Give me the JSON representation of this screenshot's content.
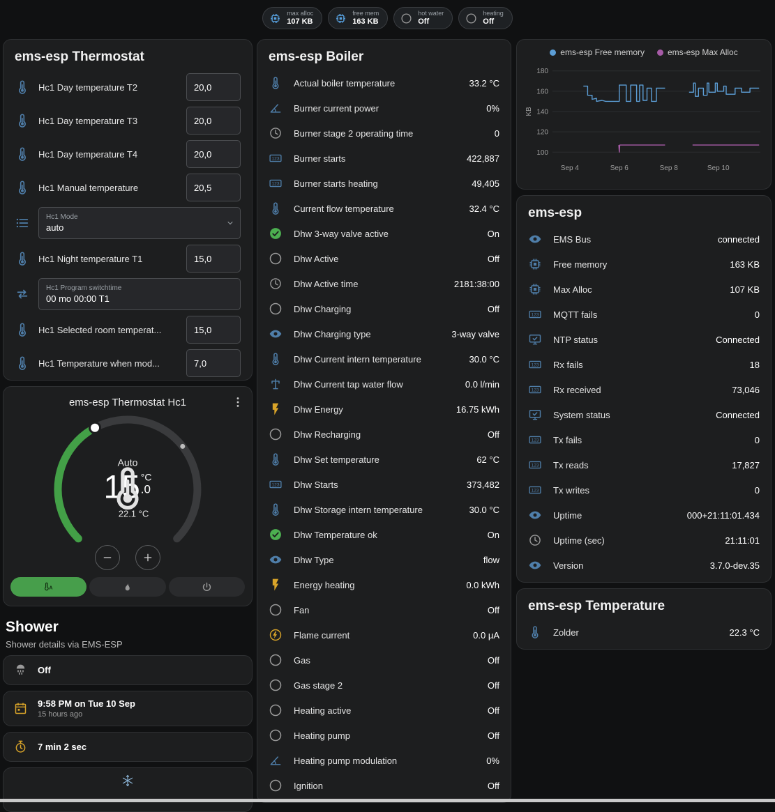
{
  "colors": {
    "blue": "#4f7ea9",
    "chip_blue": "#57a0de",
    "gray": "#9a9a9a",
    "green": "#4caf50",
    "amber": "#d9a429",
    "light_blue": "#8fb9dc"
  },
  "top_chips": [
    {
      "icon": "memory-icon",
      "color": "chip_blue",
      "label": "max alloc",
      "value": "107 KB"
    },
    {
      "icon": "memory-icon",
      "color": "chip_blue",
      "label": "free mem",
      "value": "163 KB"
    },
    {
      "icon": "circle-icon",
      "color": "gray",
      "label": "hot water",
      "value": "Off"
    },
    {
      "icon": "circle-icon",
      "color": "gray",
      "label": "heating",
      "value": "Off"
    }
  ],
  "left": {
    "thermostat_card": {
      "title": "ems-esp Thermostat",
      "rows": [
        {
          "type": "number",
          "icon": "thermometer-icon",
          "color": "blue",
          "label": "Hc1 Day temperature T2",
          "value": "20,0"
        },
        {
          "type": "number",
          "icon": "thermometer-icon",
          "color": "blue",
          "label": "Hc1 Day temperature T3",
          "value": "20,0"
        },
        {
          "type": "number",
          "icon": "thermometer-icon",
          "color": "blue",
          "label": "Hc1 Day temperature T4",
          "value": "20,0"
        },
        {
          "type": "number",
          "icon": "thermometer-icon",
          "color": "blue",
          "label": "Hc1 Manual temperature",
          "value": "20,5"
        },
        {
          "type": "select",
          "icon": "menu-icon",
          "color": "blue",
          "field_label": "Hc1 Mode",
          "value": "auto"
        },
        {
          "type": "number",
          "icon": "thermometer-icon",
          "color": "blue",
          "label": "Hc1 Night temperature T1",
          "value": "15,0"
        },
        {
          "type": "text",
          "icon": "swap-icon",
          "color": "blue",
          "field_label": "Hc1 Program switchtime",
          "value": "00 mo 00:00 T1"
        },
        {
          "type": "number",
          "icon": "thermometer-icon",
          "color": "blue",
          "label": "Hc1 Selected room temperat...",
          "value": "15,0"
        },
        {
          "type": "number",
          "icon": "thermometer-icon",
          "color": "blue",
          "label": "Hc1 Temperature when mod...",
          "value": "7,0"
        }
      ]
    },
    "hc1_card": {
      "title": "ems-esp Thermostat Hc1",
      "mode_label": "Auto",
      "temp_int": "15",
      "temp_dec": ".0",
      "temp_unit": "°C",
      "current_temp": "22.1 °C",
      "mode_buttons": [
        {
          "icon": "auto-mode-icon",
          "name": "auto-mode-button",
          "active": true
        },
        {
          "icon": "flame-icon",
          "name": "heat-mode-button",
          "active": false
        },
        {
          "icon": "power-icon",
          "name": "off-mode-button",
          "active": false
        }
      ]
    },
    "shower": {
      "title": "Shower",
      "subtitle": "Shower details via EMS-ESP",
      "cards": [
        {
          "icon": "shower-icon",
          "color": "gray",
          "primary": "Off"
        },
        {
          "icon": "calendar-icon",
          "color": "amber",
          "primary": "9:58 PM on Tue 10 Sep",
          "secondary": "15 hours ago"
        },
        {
          "icon": "timer-icon",
          "color": "amber",
          "primary": "7 min 2 sec"
        },
        {
          "icon": "snowflake-icon",
          "color": "light_blue",
          "centered": true
        }
      ]
    }
  },
  "boiler_card": {
    "title": "ems-esp Boiler",
    "rows": [
      {
        "icon": "thermometer-icon",
        "color": "blue",
        "label": "Actual boiler temperature",
        "value": "33.2 °C"
      },
      {
        "icon": "angle-icon",
        "color": "blue",
        "label": "Burner current power",
        "value": "0%"
      },
      {
        "icon": "clock-icon",
        "color": "gray",
        "label": "Burner stage 2 operating time",
        "value": "0"
      },
      {
        "icon": "counter-icon",
        "color": "blue",
        "label": "Burner starts",
        "value": "422,887"
      },
      {
        "icon": "counter-icon",
        "color": "blue",
        "label": "Burner starts heating",
        "value": "49,405"
      },
      {
        "icon": "thermometer-icon",
        "color": "blue",
        "label": "Current flow temperature",
        "value": "32.4 °C"
      },
      {
        "icon": "check-circle-icon",
        "color": "green",
        "label": "Dhw 3-way valve active",
        "value": "On"
      },
      {
        "icon": "circle-icon",
        "color": "gray",
        "label": "Dhw Active",
        "value": "Off"
      },
      {
        "icon": "clock-icon",
        "color": "gray",
        "label": "Dhw Active time",
        "value": "2181:38:00"
      },
      {
        "icon": "circle-icon",
        "color": "gray",
        "label": "Dhw Charging",
        "value": "Off"
      },
      {
        "icon": "eye-icon",
        "color": "blue",
        "label": "Dhw Charging type",
        "value": "3-way valve"
      },
      {
        "icon": "thermometer-icon",
        "color": "blue",
        "label": "Dhw Current intern temperature",
        "value": "30.0 °C"
      },
      {
        "icon": "water-pump-icon",
        "color": "blue",
        "label": "Dhw Current tap water flow",
        "value": "0.0 l/min"
      },
      {
        "icon": "flash-icon",
        "color": "amber",
        "label": "Dhw Energy",
        "value": "16.75 kWh"
      },
      {
        "icon": "circle-icon",
        "color": "gray",
        "label": "Dhw Recharging",
        "value": "Off"
      },
      {
        "icon": "thermometer-icon",
        "color": "blue",
        "label": "Dhw Set temperature",
        "value": "62 °C"
      },
      {
        "icon": "counter-icon",
        "color": "blue",
        "label": "Dhw Starts",
        "value": "373,482"
      },
      {
        "icon": "thermometer-icon",
        "color": "blue",
        "label": "Dhw Storage intern temperature",
        "value": "30.0 °C"
      },
      {
        "icon": "check-circle-icon",
        "color": "green",
        "label": "Dhw Temperature ok",
        "value": "On"
      },
      {
        "icon": "eye-icon",
        "color": "blue",
        "label": "Dhw Type",
        "value": "flow"
      },
      {
        "icon": "flash-icon",
        "color": "amber",
        "label": "Energy heating",
        "value": "0.0 kWh"
      },
      {
        "icon": "circle-icon",
        "color": "gray",
        "label": "Fan",
        "value": "Off"
      },
      {
        "icon": "flash-circle-icon",
        "color": "amber",
        "label": "Flame current",
        "value": "0.0 µA"
      },
      {
        "icon": "circle-icon",
        "color": "gray",
        "label": "Gas",
        "value": "Off"
      },
      {
        "icon": "circle-icon",
        "color": "gray",
        "label": "Gas stage 2",
        "value": "Off"
      },
      {
        "icon": "circle-icon",
        "color": "gray",
        "label": "Heating active",
        "value": "Off"
      },
      {
        "icon": "circle-icon",
        "color": "gray",
        "label": "Heating pump",
        "value": "Off"
      },
      {
        "icon": "angle-icon",
        "color": "blue",
        "label": "Heating pump modulation",
        "value": "0%"
      },
      {
        "icon": "circle-icon",
        "color": "gray",
        "label": "Ignition",
        "value": "Off"
      }
    ]
  },
  "right": {
    "system_card": {
      "title": "ems-esp",
      "rows": [
        {
          "icon": "eye-icon",
          "color": "blue",
          "label": "EMS Bus",
          "value": "connected"
        },
        {
          "icon": "memory-icon",
          "color": "blue",
          "label": "Free memory",
          "value": "163 KB"
        },
        {
          "icon": "memory-icon",
          "color": "blue",
          "label": "Max Alloc",
          "value": "107 KB"
        },
        {
          "icon": "counter-icon",
          "color": "blue",
          "label": "MQTT fails",
          "value": "0"
        },
        {
          "icon": "monitor-check-icon",
          "color": "blue",
          "label": "NTP status",
          "value": "Connected"
        },
        {
          "icon": "counter-icon",
          "color": "blue",
          "label": "Rx fails",
          "value": "18"
        },
        {
          "icon": "counter-icon",
          "color": "blue",
          "label": "Rx received",
          "value": "73,046"
        },
        {
          "icon": "monitor-check-icon",
          "color": "blue",
          "label": "System status",
          "value": "Connected"
        },
        {
          "icon": "counter-icon",
          "color": "blue",
          "label": "Tx fails",
          "value": "0"
        },
        {
          "icon": "counter-icon",
          "color": "blue",
          "label": "Tx reads",
          "value": "17,827"
        },
        {
          "icon": "counter-icon",
          "color": "blue",
          "label": "Tx writes",
          "value": "0"
        },
        {
          "icon": "eye-icon",
          "color": "blue",
          "label": "Uptime",
          "value": "000+21:11:01.434"
        },
        {
          "icon": "clock-icon",
          "color": "gray",
          "label": "Uptime (sec)",
          "value": "21:11:01"
        },
        {
          "icon": "eye-icon",
          "color": "blue",
          "label": "Version",
          "value": "3.7.0-dev.35"
        }
      ]
    },
    "temperature_card": {
      "title": "ems-esp Temperature",
      "rows": [
        {
          "icon": "thermometer-icon",
          "color": "blue",
          "label": "Zolder",
          "value": "22.3 °C"
        }
      ]
    }
  },
  "chart_data": {
    "type": "line",
    "ylabel": "KB",
    "grid": "horizontal",
    "legend_position": "top",
    "xlim": [
      0.3,
      8.7
    ],
    "ylim": [
      94,
      186
    ],
    "y_ticks": [
      100,
      120,
      140,
      160,
      180
    ],
    "x_ticks": [
      {
        "x": 1,
        "label": "Sep 4"
      },
      {
        "x": 3,
        "label": "Sep 6"
      },
      {
        "x": 5,
        "label": "Sep 8"
      },
      {
        "x": 7,
        "label": "Sep 10"
      }
    ],
    "series": [
      {
        "name": "ems-esp Free memory",
        "color": "#5c9ed6",
        "points": [
          [
            1.55,
            165
          ],
          [
            1.72,
            165
          ],
          [
            1.72,
            156
          ],
          [
            1.9,
            156
          ],
          [
            1.9,
            152
          ],
          [
            2.08,
            153
          ],
          [
            2.08,
            150
          ],
          [
            2.3,
            151
          ],
          [
            2.45,
            150
          ],
          [
            3.0,
            150
          ],
          [
            3.0,
            166
          ],
          [
            3.28,
            166
          ],
          [
            3.28,
            150
          ],
          [
            3.46,
            150
          ],
          [
            3.46,
            166
          ],
          [
            3.7,
            166
          ],
          [
            3.7,
            150
          ],
          [
            3.82,
            150
          ],
          [
            3.82,
            166
          ],
          [
            3.96,
            166
          ],
          [
            3.96,
            151
          ],
          [
            4.12,
            151
          ],
          [
            4.12,
            163
          ],
          [
            4.3,
            163
          ],
          [
            4.3,
            150
          ],
          [
            4.5,
            150
          ],
          [
            4.5,
            163
          ],
          [
            4.85,
            163
          ],
          null,
          [
            5.82,
            159
          ],
          [
            6.0,
            159
          ],
          [
            6.0,
            168
          ],
          [
            6.07,
            168
          ],
          [
            6.07,
            155
          ],
          [
            6.2,
            155
          ],
          [
            6.2,
            163
          ],
          [
            6.4,
            163
          ],
          [
            6.4,
            156
          ],
          [
            6.55,
            156
          ],
          [
            6.55,
            168
          ],
          [
            6.62,
            168
          ],
          [
            6.62,
            159
          ],
          [
            6.88,
            159
          ],
          [
            6.88,
            168
          ],
          [
            6.96,
            168
          ],
          [
            6.96,
            160
          ],
          [
            7.22,
            160
          ],
          [
            7.22,
            165
          ],
          [
            7.32,
            165
          ],
          [
            7.32,
            157
          ],
          [
            7.68,
            157
          ],
          [
            7.68,
            163
          ],
          [
            7.94,
            163
          ],
          [
            7.94,
            159
          ],
          [
            8.28,
            159
          ],
          [
            8.28,
            163
          ],
          [
            8.65,
            163
          ]
        ]
      },
      {
        "name": "ems-esp Max Alloc",
        "color": "#a65ba6",
        "points": [
          [
            2.98,
            107
          ],
          [
            3.0,
            100
          ],
          [
            3.02,
            107
          ],
          [
            4.85,
            107
          ],
          null,
          [
            5.96,
            107
          ],
          [
            8.65,
            107
          ]
        ]
      }
    ]
  }
}
